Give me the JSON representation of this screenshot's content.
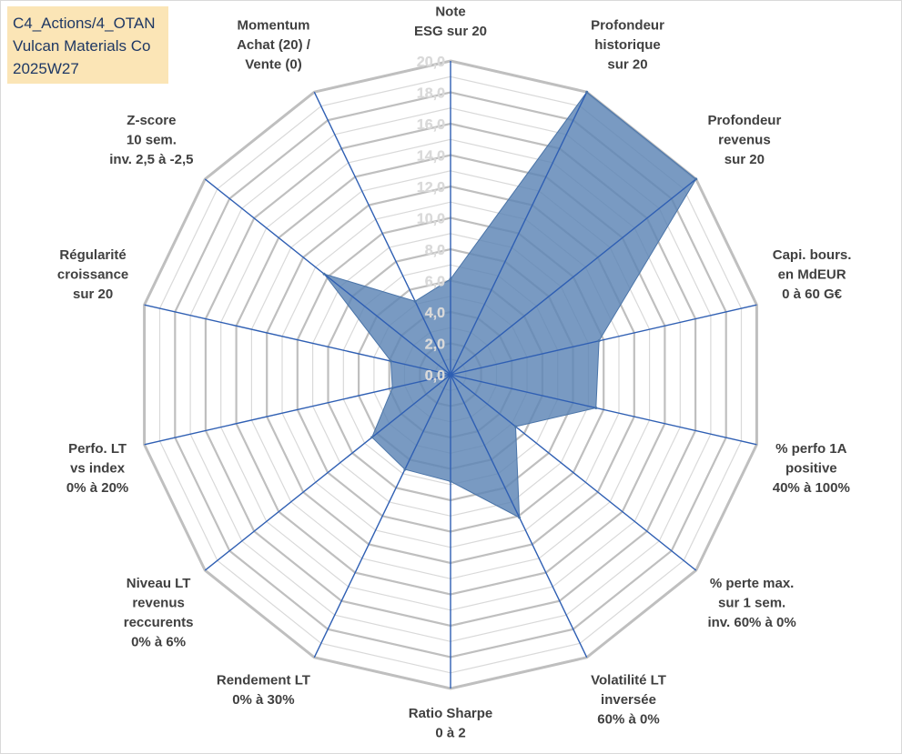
{
  "header": {
    "line1": "C4_Actions/4_OTAN",
    "line2": "Vulcan Materials Co",
    "line3": "2025W27"
  },
  "colors": {
    "fill": "#5b84b5",
    "spoke": "#2f5fb3",
    "grid_outer": "#bfbfbf",
    "grid_inner": "#d9d9d9",
    "title_bg": "#fbe5b6"
  },
  "chart_data": {
    "type": "radar",
    "title": "",
    "rmin": 0,
    "rmax": 20,
    "tick_step": 2,
    "tick_labels": [
      "0,0",
      "2,0",
      "4,0",
      "6,0",
      "8,0",
      "10,0",
      "12,0",
      "14,0",
      "16,0",
      "18,0",
      "20,0"
    ],
    "grid": true,
    "categories": [
      [
        "Note",
        "ESG sur 20"
      ],
      [
        "Profondeur",
        "historique",
        "sur 20"
      ],
      [
        "Profondeur",
        "revenus",
        "sur 20"
      ],
      [
        "Capi. bours.",
        "en MdEUR",
        "0 à 60 G€"
      ],
      [
        "% perfo 1A",
        "positive",
        "40% à 100%"
      ],
      [
        "% perte max.",
        "sur 1 sem.",
        "inv. 60% à 0%"
      ],
      [
        "Volatilité LT",
        "inversée",
        "60% à 0%"
      ],
      [
        "Ratio Sharpe",
        "0 à 2"
      ],
      [
        "Rendement LT",
        "0% à 30%"
      ],
      [
        "Niveau LT",
        "revenus",
        "reccurents",
        "0% à 6%"
      ],
      [
        "Perfo. LT",
        "vs index",
        "0% à 20%"
      ],
      [
        "Régularité",
        "croissance",
        "sur 20"
      ],
      [
        "Z-score",
        "10 sem.",
        "inv. 2,5 à -2,5"
      ],
      [
        "Momentum",
        "Achat (20) /",
        "Vente (0)"
      ]
    ],
    "series": [
      {
        "values": [
          6.1,
          20.0,
          20.0,
          9.7,
          9.5,
          5.3,
          10.1,
          6.8,
          6.7,
          6.4,
          3.8,
          3.9,
          10.3,
          5.2
        ]
      }
    ]
  }
}
